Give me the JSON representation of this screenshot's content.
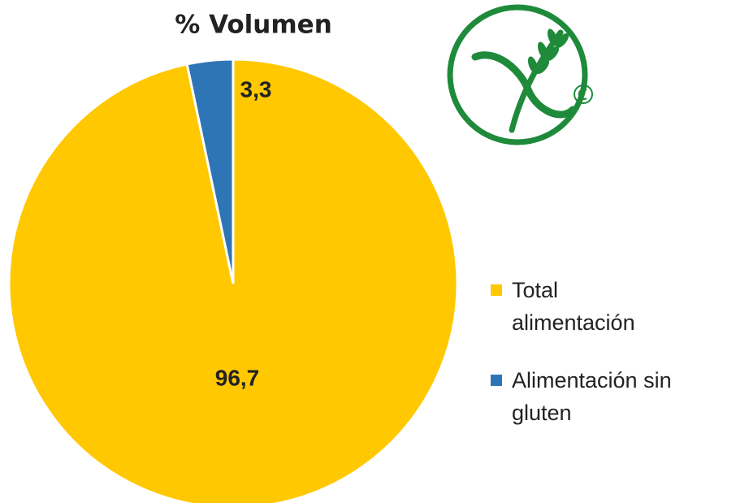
{
  "chart_data": {
    "type": "pie",
    "title": "% Volumen",
    "series": [
      {
        "name": "Total alimentación",
        "color": "#ffc800",
        "values": [
          96.7
        ],
        "value_labels": [
          "96,7"
        ]
      },
      {
        "name": "Alimentación sin gluten",
        "color": "#2e75b6",
        "values": [
          3.3
        ],
        "value_labels": [
          "3,3"
        ]
      }
    ],
    "legend": "right"
  }
}
